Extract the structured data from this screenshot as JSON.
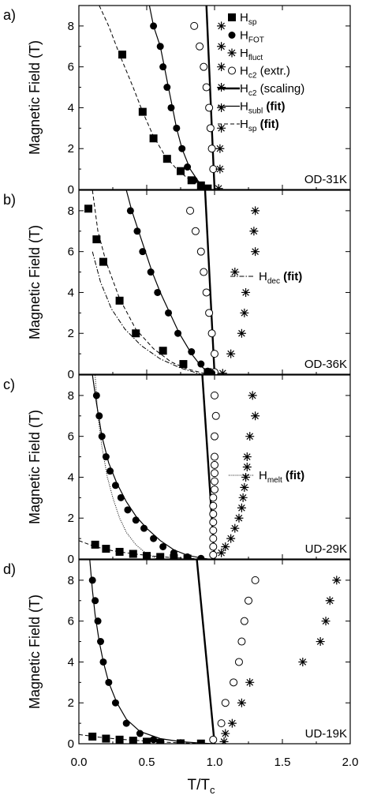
{
  "chart_data": {
    "type": "scatter",
    "xlabel_main": "T/T",
    "xlabel_sub": "c",
    "xlim": [
      0.0,
      2.0
    ],
    "x_ticks": [
      "0.0",
      "0.5",
      "1.0",
      "1.5",
      "2.0"
    ],
    "ylim": [
      0,
      9
    ],
    "y_ticks": [
      "0",
      "2",
      "4",
      "6",
      "8"
    ],
    "ylabel": "Magnetic Field (T)",
    "panels": [
      {
        "letter": "a)",
        "sample": "OD-31K",
        "sp": [
          [
            0.32,
            6.6
          ],
          [
            0.47,
            3.8
          ],
          [
            0.55,
            2.5
          ],
          [
            0.65,
            1.5
          ],
          [
            0.75,
            0.9
          ],
          [
            0.83,
            0.45
          ],
          [
            0.9,
            0.2
          ],
          [
            0.95,
            0.05
          ]
        ],
        "fot": [
          [
            0.55,
            8.0
          ],
          [
            0.6,
            7.0
          ],
          [
            0.62,
            6.0
          ],
          [
            0.65,
            5.0
          ],
          [
            0.68,
            4.0
          ],
          [
            0.72,
            3.0
          ],
          [
            0.76,
            2.0
          ],
          [
            0.8,
            1.1
          ],
          [
            0.85,
            0.45
          ],
          [
            0.9,
            0.15
          ],
          [
            0.93,
            0.05
          ]
        ],
        "fluct": [
          [
            1.05,
            8.0
          ],
          [
            1.05,
            7.0
          ],
          [
            1.05,
            6.0
          ],
          [
            1.05,
            5.0
          ],
          [
            1.05,
            4.0
          ],
          [
            1.05,
            3.0
          ],
          [
            1.04,
            2.0
          ],
          [
            1.04,
            1.0
          ],
          [
            1.03,
            0.05
          ]
        ],
        "c2extr": [
          [
            0.85,
            8.0
          ],
          [
            0.89,
            7.0
          ],
          [
            0.92,
            6.0
          ],
          [
            0.94,
            5.0
          ],
          [
            0.96,
            4.0
          ],
          [
            0.97,
            3.0
          ],
          [
            0.98,
            2.0
          ],
          [
            0.99,
            1.0
          ]
        ],
        "scaling": [
          [
            0.94,
            9.0
          ],
          [
            1.0,
            0.0
          ]
        ],
        "subl": [
          [
            0.52,
            9.0
          ],
          [
            0.55,
            8.0
          ],
          [
            0.6,
            7.0
          ],
          [
            0.63,
            6.0
          ],
          [
            0.66,
            5.0
          ],
          [
            0.69,
            4.0
          ],
          [
            0.72,
            3.0
          ],
          [
            0.76,
            2.0
          ],
          [
            0.82,
            1.0
          ],
          [
            0.88,
            0.4
          ],
          [
            0.95,
            0.0
          ]
        ],
        "spfit": [
          [
            0.15,
            9.0
          ],
          [
            0.22,
            8.0
          ],
          [
            0.3,
            6.6
          ],
          [
            0.4,
            5.0
          ],
          [
            0.47,
            3.8
          ],
          [
            0.55,
            2.6
          ],
          [
            0.63,
            1.7
          ],
          [
            0.72,
            1.0
          ],
          [
            0.82,
            0.45
          ],
          [
            0.95,
            0.0
          ]
        ],
        "legend": {
          "items": [
            {
              "sym": "square",
              "main": "H",
              "sub": "sp"
            },
            {
              "sym": "dot",
              "main": "H",
              "sub": "FOT"
            },
            {
              "sym": "star",
              "main": "H",
              "sub": "fluct"
            },
            {
              "sym": "circle",
              "main": "H",
              "sub": "c2",
              "tail": " (extr.)"
            },
            {
              "sym": "thick",
              "main": "H",
              "sub": "c2",
              "tail": " (scaling)"
            },
            {
              "sym": "thin",
              "main": "H",
              "sub": "subl",
              "tail": " (fit)"
            },
            {
              "sym": "dash",
              "main": "H",
              "sub": "sp",
              "tail": " (fit)"
            }
          ]
        }
      },
      {
        "letter": "b)",
        "sample": "OD-36K",
        "sp": [
          [
            0.07,
            8.1
          ],
          [
            0.13,
            6.6
          ],
          [
            0.18,
            5.5
          ],
          [
            0.3,
            3.6
          ],
          [
            0.42,
            2.0
          ],
          [
            0.62,
            1.15
          ],
          [
            0.77,
            0.5
          ],
          [
            0.95,
            0.1
          ]
        ],
        "fot": [
          [
            0.38,
            8.0
          ],
          [
            0.43,
            7.0
          ],
          [
            0.47,
            6.0
          ],
          [
            0.53,
            5.0
          ],
          [
            0.58,
            4.0
          ],
          [
            0.66,
            3.0
          ],
          [
            0.73,
            2.0
          ],
          [
            0.83,
            1.1
          ],
          [
            0.9,
            0.5
          ],
          [
            0.95,
            0.15
          ],
          [
            0.98,
            0.05
          ]
        ],
        "fluct": [
          [
            1.3,
            8.0
          ],
          [
            1.29,
            7.0
          ],
          [
            1.3,
            6.0
          ],
          [
            1.15,
            5.0
          ],
          [
            1.23,
            4.0
          ],
          [
            1.22,
            3.0
          ],
          [
            1.2,
            2.0
          ],
          [
            1.12,
            1.0
          ],
          [
            1.06,
            0.05
          ]
        ],
        "c2extr": [
          [
            0.82,
            8.0
          ],
          [
            0.86,
            7.0
          ],
          [
            0.9,
            6.0
          ],
          [
            0.92,
            5.0
          ],
          [
            0.94,
            4.0
          ],
          [
            0.96,
            3.0
          ],
          [
            0.98,
            2.0
          ],
          [
            1.0,
            1.0
          ],
          [
            1.0,
            0.1
          ]
        ],
        "scaling": [
          [
            0.93,
            9.0
          ],
          [
            1.0,
            0.0
          ]
        ],
        "subl": [
          [
            0.35,
            9.0
          ],
          [
            0.39,
            8.0
          ],
          [
            0.44,
            7.0
          ],
          [
            0.49,
            6.0
          ],
          [
            0.54,
            5.0
          ],
          [
            0.6,
            4.0
          ],
          [
            0.67,
            3.0
          ],
          [
            0.74,
            2.0
          ],
          [
            0.83,
            1.0
          ],
          [
            0.9,
            0.4
          ],
          [
            0.97,
            0.0
          ]
        ],
        "spfit": [
          [
            0.1,
            9.0
          ],
          [
            0.14,
            7.0
          ],
          [
            0.2,
            5.5
          ],
          [
            0.3,
            3.7
          ],
          [
            0.42,
            2.2
          ],
          [
            0.55,
            1.25
          ],
          [
            0.68,
            0.6
          ],
          [
            0.8,
            0.25
          ],
          [
            0.95,
            0.0
          ]
        ],
        "decfit": [
          [
            0.1,
            6.0
          ],
          [
            0.16,
            4.5
          ],
          [
            0.24,
            3.2
          ],
          [
            0.34,
            2.2
          ],
          [
            0.46,
            1.4
          ],
          [
            0.6,
            0.75
          ],
          [
            0.75,
            0.3
          ],
          [
            0.9,
            0.0
          ]
        ],
        "legend": {
          "items": [
            {
              "sym": "dashdot",
              "main": "H",
              "sub": "dec",
              "tail": " (fit)"
            }
          ]
        }
      },
      {
        "letter": "c)",
        "sample": "UD-29K",
        "sp": [
          [
            0.12,
            0.7
          ],
          [
            0.2,
            0.5
          ],
          [
            0.3,
            0.35
          ],
          [
            0.4,
            0.25
          ],
          [
            0.5,
            0.15
          ],
          [
            0.6,
            0.1
          ],
          [
            0.7,
            0.05
          ],
          [
            0.8,
            0.02
          ]
        ],
        "fot": [
          [
            0.13,
            8.0
          ],
          [
            0.15,
            7.0
          ],
          [
            0.17,
            6.0
          ],
          [
            0.2,
            5.0
          ],
          [
            0.23,
            4.3
          ],
          [
            0.27,
            3.6
          ],
          [
            0.31,
            3.0
          ],
          [
            0.36,
            2.4
          ],
          [
            0.42,
            1.9
          ],
          [
            0.48,
            1.5
          ],
          [
            0.55,
            1.0
          ],
          [
            0.62,
            0.6
          ],
          [
            0.7,
            0.3
          ],
          [
            0.8,
            0.1
          ],
          [
            0.9,
            0.03
          ]
        ],
        "fluct": [
          [
            1.28,
            8.0
          ],
          [
            1.3,
            7.0
          ],
          [
            1.26,
            6.0
          ],
          [
            1.24,
            5.0
          ],
          [
            1.24,
            4.5
          ],
          [
            1.23,
            4.0
          ],
          [
            1.22,
            3.5
          ],
          [
            1.21,
            3.0
          ],
          [
            1.2,
            2.5
          ],
          [
            1.18,
            2.0
          ],
          [
            1.15,
            1.5
          ],
          [
            1.12,
            1.0
          ],
          [
            1.08,
            0.6
          ],
          [
            1.05,
            0.3
          ]
        ],
        "c2extr": [
          [
            1.0,
            8.0
          ],
          [
            1.01,
            7.0
          ],
          [
            1.0,
            6.0
          ],
          [
            1.0,
            5.0
          ],
          [
            1.0,
            4.6
          ],
          [
            1.0,
            4.2
          ],
          [
            1.0,
            3.8
          ],
          [
            1.0,
            3.4
          ],
          [
            0.99,
            3.0
          ],
          [
            0.99,
            2.6
          ],
          [
            0.99,
            2.2
          ],
          [
            0.99,
            1.8
          ],
          [
            0.99,
            1.4
          ],
          [
            0.99,
            1.0
          ],
          [
            0.99,
            0.6
          ],
          [
            0.99,
            0.2
          ]
        ],
        "scaling": [
          [
            0.91,
            9.0
          ],
          [
            1.0,
            0.0
          ]
        ],
        "subl": [
          [
            0.1,
            9.0
          ],
          [
            0.13,
            7.6
          ],
          [
            0.17,
            6.0
          ],
          [
            0.22,
            4.7
          ],
          [
            0.28,
            3.7
          ],
          [
            0.35,
            2.8
          ],
          [
            0.42,
            2.1
          ],
          [
            0.5,
            1.5
          ],
          [
            0.6,
            0.9
          ],
          [
            0.7,
            0.45
          ],
          [
            0.8,
            0.18
          ],
          [
            0.9,
            0.05
          ],
          [
            0.95,
            0.0
          ]
        ],
        "spfit": [
          [
            0.0,
            0.9
          ],
          [
            0.12,
            0.6
          ],
          [
            0.25,
            0.4
          ],
          [
            0.4,
            0.25
          ],
          [
            0.55,
            0.14
          ],
          [
            0.7,
            0.06
          ],
          [
            0.85,
            0.02
          ],
          [
            0.95,
            0.0
          ]
        ],
        "meltfit": [
          [
            0.12,
            9.0
          ],
          [
            0.14,
            7.0
          ],
          [
            0.17,
            5.5
          ],
          [
            0.21,
            4.0
          ],
          [
            0.25,
            3.0
          ],
          [
            0.3,
            2.0
          ],
          [
            0.35,
            1.3
          ],
          [
            0.42,
            0.7
          ],
          [
            0.5,
            0.25
          ],
          [
            0.58,
            0.0
          ]
        ],
        "legend": {
          "items": [
            {
              "sym": "dot_line",
              "main": "H",
              "sub": "melt",
              "tail": " (fit)"
            }
          ]
        }
      },
      {
        "letter": "d)",
        "sample": "UD-19K",
        "sp": [
          [
            0.1,
            0.35
          ],
          [
            0.2,
            0.25
          ],
          [
            0.3,
            0.2
          ],
          [
            0.4,
            0.15
          ],
          [
            0.5,
            0.1
          ],
          [
            0.6,
            0.05
          ],
          [
            0.75,
            0.02
          ],
          [
            0.9,
            0.01
          ]
        ],
        "fot": [
          [
            0.1,
            8.0
          ],
          [
            0.12,
            7.0
          ],
          [
            0.14,
            6.0
          ],
          [
            0.16,
            5.0
          ],
          [
            0.18,
            4.0
          ],
          [
            0.22,
            3.0
          ],
          [
            0.27,
            2.0
          ],
          [
            0.35,
            1.0
          ],
          [
            0.45,
            0.5
          ],
          [
            0.55,
            0.2
          ],
          [
            0.75,
            0.05
          ],
          [
            0.9,
            0.02
          ]
        ],
        "fluct": [
          [
            1.9,
            8.0
          ],
          [
            1.85,
            7.0
          ],
          [
            1.82,
            6.0
          ],
          [
            1.78,
            5.0
          ],
          [
            1.65,
            4.0
          ],
          [
            1.26,
            3.0
          ],
          [
            1.2,
            2.0
          ],
          [
            1.13,
            1.0
          ],
          [
            1.08,
            0.5
          ],
          [
            1.07,
            0.1
          ]
        ],
        "c2extr": [
          [
            1.3,
            8.0
          ],
          [
            1.25,
            7.0
          ],
          [
            1.22,
            6.0
          ],
          [
            1.2,
            5.0
          ],
          [
            1.18,
            4.0
          ],
          [
            1.14,
            3.0
          ],
          [
            1.08,
            2.0
          ],
          [
            1.05,
            1.0
          ],
          [
            0.99,
            0.2
          ]
        ],
        "scaling": [
          [
            0.87,
            9.0
          ],
          [
            1.0,
            0.0
          ]
        ],
        "subl": [
          [
            0.08,
            9.0
          ],
          [
            0.1,
            7.5
          ],
          [
            0.12,
            6.3
          ],
          [
            0.15,
            5.0
          ],
          [
            0.18,
            4.0
          ],
          [
            0.22,
            3.0
          ],
          [
            0.28,
            2.0
          ],
          [
            0.35,
            1.2
          ],
          [
            0.45,
            0.6
          ],
          [
            0.6,
            0.25
          ],
          [
            0.75,
            0.1
          ],
          [
            0.9,
            0.03
          ],
          [
            1.0,
            0.0
          ]
        ],
        "spfit": [
          [
            0.0,
            0.45
          ],
          [
            0.15,
            0.32
          ],
          [
            0.3,
            0.22
          ],
          [
            0.45,
            0.15
          ],
          [
            0.6,
            0.09
          ],
          [
            0.75,
            0.04
          ],
          [
            0.9,
            0.01
          ],
          [
            1.0,
            0.0
          ]
        ]
      }
    ]
  }
}
